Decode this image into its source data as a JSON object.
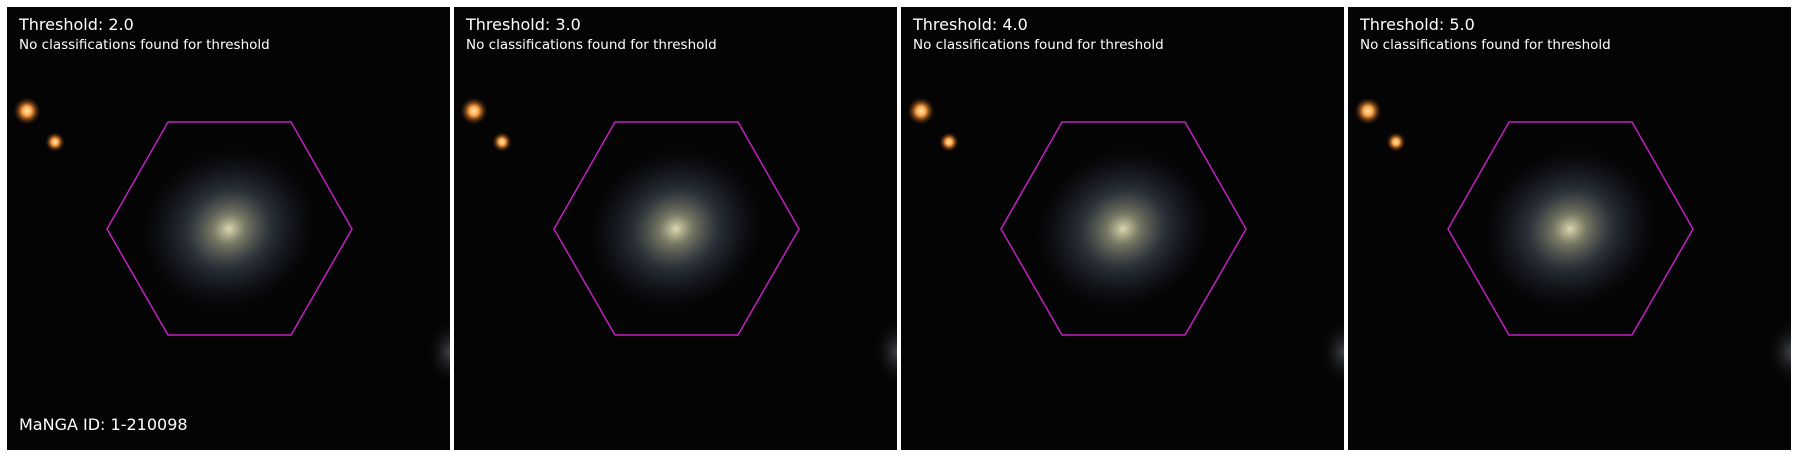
{
  "panels": [
    {
      "threshold_label": "Threshold: 2.0",
      "status": "No classifications found for threshold"
    },
    {
      "threshold_label": "Threshold: 3.0",
      "status": "No classifications found for threshold"
    },
    {
      "threshold_label": "Threshold: 4.0",
      "status": "No classifications found for threshold"
    },
    {
      "threshold_label": "Threshold: 5.0",
      "status": "No classifications found for threshold"
    }
  ],
  "manga_id_label": "MaNGA ID: 1-210098",
  "colors": {
    "background": "#050404",
    "hexagon_outline": "#c020c0",
    "text": "#ffffff",
    "star": "#ffa040"
  }
}
